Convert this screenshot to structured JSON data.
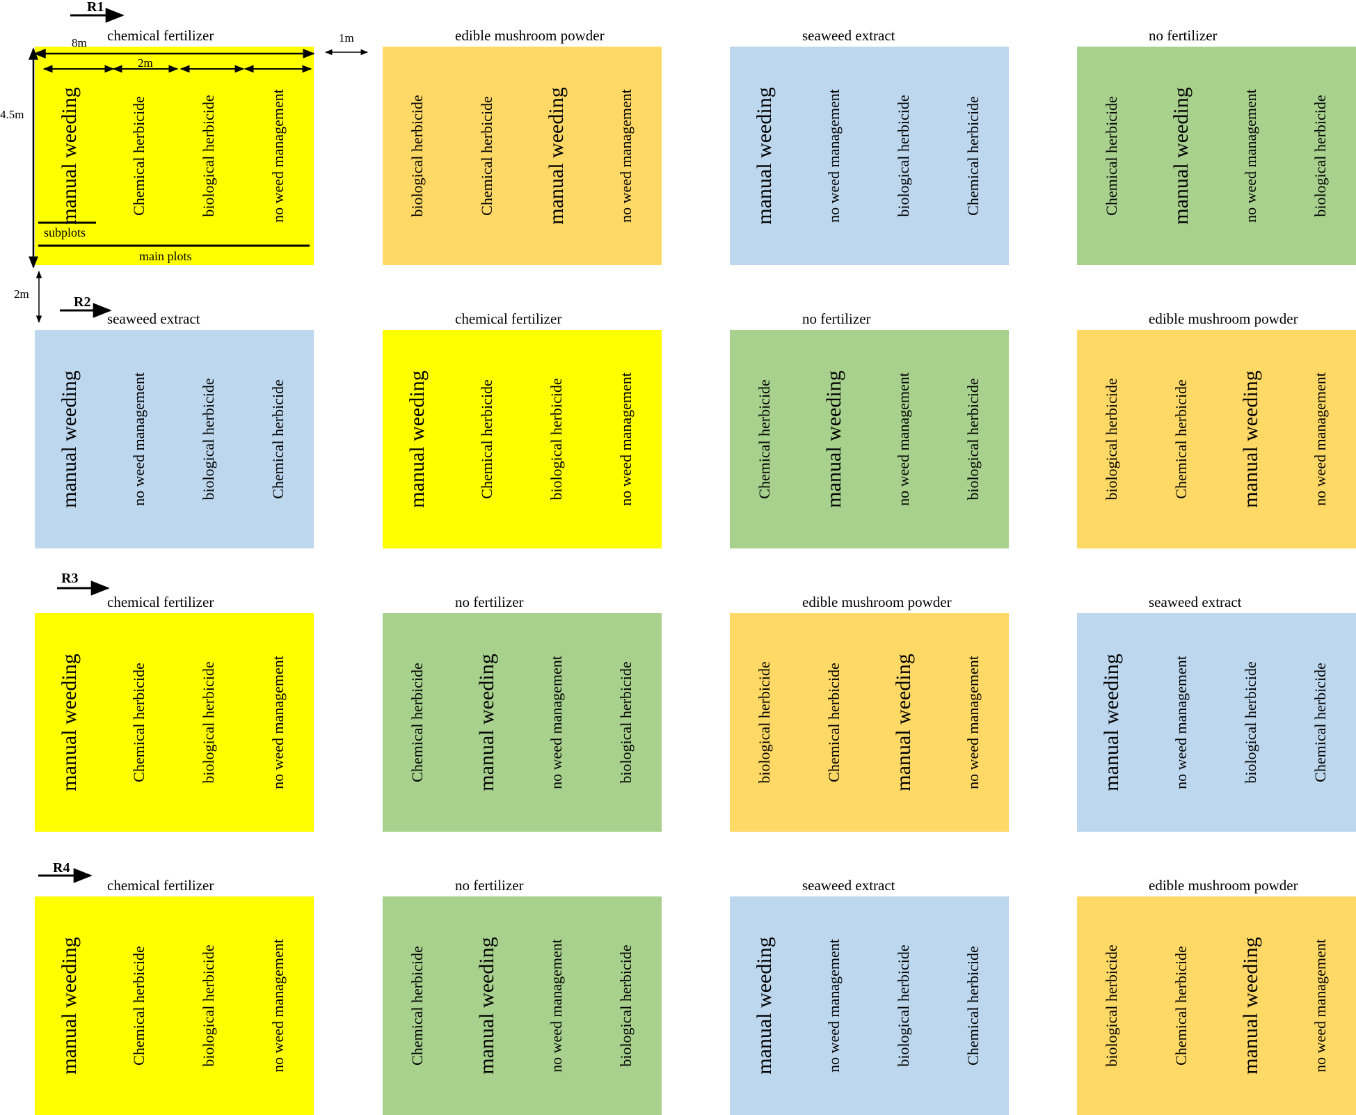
{
  "colors": {
    "chemical fertilizer": "#ffff00",
    "edible mushroom powder": "#ffd966",
    "seaweed extract": "#bdd7ee",
    "no fertilizer": "#a9d18e"
  },
  "replicates": [
    {
      "label": "R1",
      "plots": [
        {
          "main": "chemical fertilizer",
          "subplots": [
            "manual weeding",
            "Chemical herbicide",
            "biological herbicide",
            "no weed management"
          ]
        },
        {
          "main": "edible mushroom powder",
          "subplots": [
            "biological herbicide",
            "Chemical herbicide",
            "manual weeding",
            "no weed management"
          ]
        },
        {
          "main": "seaweed extract",
          "subplots": [
            "manual weeding",
            "no weed management",
            "biological herbicide",
            "Chemical herbicide"
          ]
        },
        {
          "main": "no fertilizer",
          "subplots": [
            "Chemical herbicide",
            "manual weeding",
            "no weed management",
            "biological herbicide"
          ]
        }
      ]
    },
    {
      "label": "R2",
      "plots": [
        {
          "main": "seaweed extract",
          "subplots": [
            "manual weeding",
            "no weed management",
            "biological herbicide",
            "Chemical herbicide"
          ]
        },
        {
          "main": "chemical fertilizer",
          "subplots": [
            "manual weeding",
            "Chemical herbicide",
            "biological herbicide",
            "no weed management"
          ]
        },
        {
          "main": "no fertilizer",
          "subplots": [
            "Chemical herbicide",
            "manual weeding",
            "no weed management",
            "biological herbicide"
          ]
        },
        {
          "main": "edible mushroom powder",
          "subplots": [
            "biological herbicide",
            "Chemical herbicide",
            "manual weeding",
            "no weed management"
          ]
        }
      ]
    },
    {
      "label": "R3",
      "plots": [
        {
          "main": "chemical fertilizer",
          "subplots": [
            "manual weeding",
            "Chemical herbicide",
            "biological herbicide",
            "no weed management"
          ]
        },
        {
          "main": "no fertilizer",
          "subplots": [
            "Chemical herbicide",
            "manual weeding",
            "no weed management",
            "biological herbicide"
          ]
        },
        {
          "main": "edible mushroom powder",
          "subplots": [
            "biological herbicide",
            "Chemical herbicide",
            "manual weeding",
            "no weed management"
          ]
        },
        {
          "main": "seaweed extract",
          "subplots": [
            "manual weeding",
            "no weed management",
            "biological herbicide",
            "Chemical herbicide"
          ]
        }
      ]
    },
    {
      "label": "R4",
      "plots": [
        {
          "main": "chemical fertilizer",
          "subplots": [
            "manual weeding",
            "Chemical herbicide",
            "biological herbicide",
            "no weed management"
          ]
        },
        {
          "main": "no fertilizer",
          "subplots": [
            "Chemical herbicide",
            "manual weeding",
            "no weed management",
            "biological herbicide"
          ]
        },
        {
          "main": "seaweed extract",
          "subplots": [
            "manual weeding",
            "no weed management",
            "biological herbicide",
            "Chemical herbicide"
          ]
        },
        {
          "main": "edible mushroom powder",
          "subplots": [
            "biological herbicide",
            "Chemical herbicide",
            "manual weeding",
            "no weed management"
          ]
        }
      ]
    }
  ],
  "dimensions": {
    "main_plot_width": "8m",
    "subplot_width": "2m",
    "plot_length": "4.5m",
    "plot_gap": "1m",
    "replicate_gap": "2m"
  },
  "legend": {
    "subplots": "subplots",
    "main_plots": "main plots"
  }
}
